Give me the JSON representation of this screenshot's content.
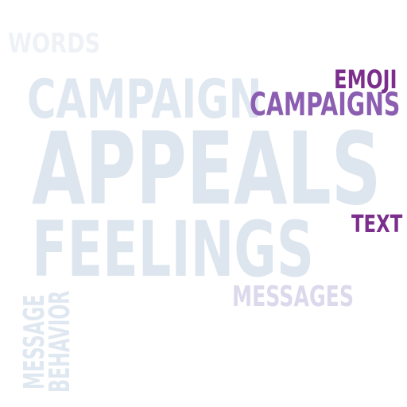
{
  "cloud": {
    "words": [
      {
        "text": "WORDS",
        "color": "#eef2f7"
      },
      {
        "text": "CAMPAIGN",
        "color": "#dfe7f0"
      },
      {
        "text": "APPEALS",
        "color": "#dde6ef"
      },
      {
        "text": "FEELINGS",
        "color": "#dde6ef"
      },
      {
        "text": "EMOJI",
        "color": "#7b2e8c"
      },
      {
        "text": "CAMPAIGNS",
        "color": "#8c5eb2"
      },
      {
        "text": "TEXT",
        "color": "#7b2e8c"
      },
      {
        "text": "MESSAGES",
        "color": "#ddd9ec"
      },
      {
        "text": "MESSAGE",
        "color": "#dfe7f0"
      },
      {
        "text": "BEHAVIOR",
        "color": "#dfe7f0"
      }
    ]
  }
}
